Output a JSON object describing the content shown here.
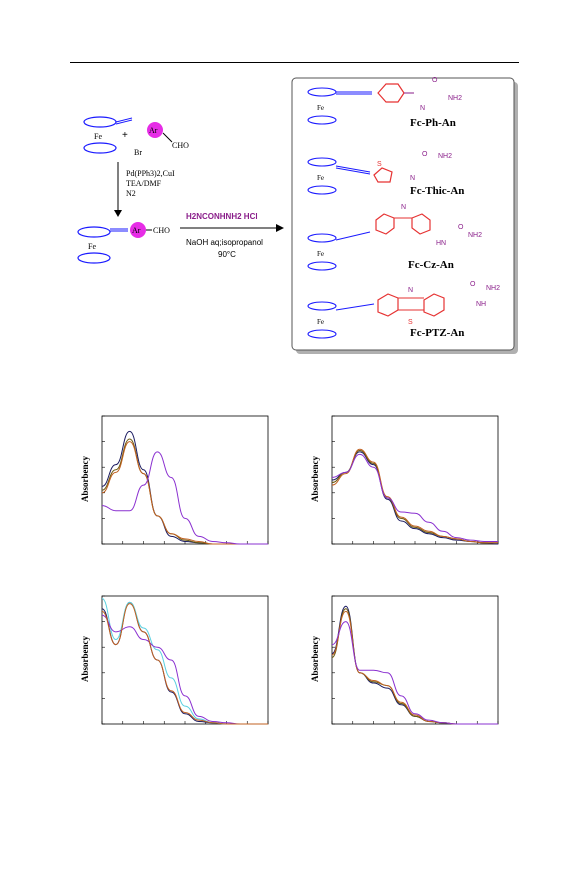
{
  "scheme": {
    "ar_label": "Ar",
    "br_label": "Br",
    "cho_label": "CHO",
    "plus": "+",
    "fe_label": "Fe",
    "conditions_1": [
      "Pd(PPh3)2,CuI",
      "TEA/DMF",
      "N2"
    ],
    "reagent": "H2NCONHNH2  HCl",
    "conditions_2": [
      "NaOH aq;isopropanol",
      "90°C"
    ],
    "products": [
      {
        "name": "Fc-Ph-An",
        "nh2": "NH2",
        "nh": "N",
        "o": "O"
      },
      {
        "name": "Fc-Thic-An",
        "nh2": "NH2",
        "nh": "N",
        "o": "O",
        "s": "S"
      },
      {
        "name": "Fc-Cz-An",
        "nh2": "NH2",
        "nh": "HN",
        "o": "O",
        "n": "N"
      },
      {
        "name": "Fc-PTZ-An",
        "nh2": "NH2",
        "nh": "NH",
        "o": "O",
        "n": "N",
        "s": "S"
      }
    ],
    "colors": {
      "accent": "#8a1e8a",
      "ring_blue": "#1a1aff",
      "ar_fill": "#e62de6",
      "red": "#e63232"
    }
  },
  "chart_data": [
    {
      "type": "line",
      "ylabel": "Absorbency",
      "x": [
        0,
        1,
        2,
        3,
        4,
        5,
        6,
        7,
        8,
        9,
        10,
        11,
        12
      ],
      "series": [
        {
          "color": "#1a1a60",
          "values": [
            0.45,
            0.62,
            0.88,
            0.58,
            0.22,
            0.06,
            0.02,
            0.01,
            0.0,
            0.0,
            0.0,
            0.0,
            0.0
          ]
        },
        {
          "color": "#6a5a10",
          "values": [
            0.42,
            0.58,
            0.82,
            0.55,
            0.22,
            0.08,
            0.03,
            0.01,
            0.0,
            0.0,
            0.0,
            0.0,
            0.0
          ]
        },
        {
          "color": "#c06020",
          "values": [
            0.4,
            0.56,
            0.8,
            0.55,
            0.22,
            0.08,
            0.04,
            0.02,
            0.0,
            0.0,
            0.0,
            0.0,
            0.0
          ]
        },
        {
          "color": "#8a30d0",
          "values": [
            0.3,
            0.26,
            0.26,
            0.46,
            0.72,
            0.52,
            0.2,
            0.06,
            0.02,
            0.01,
            0.0,
            0.0,
            0.0
          ]
        }
      ],
      "ylim": [
        0,
        1
      ]
    },
    {
      "type": "line",
      "ylabel": "Absorbency",
      "x": [
        0,
        1,
        2,
        3,
        4,
        5,
        6,
        7,
        8,
        9,
        10,
        11,
        12
      ],
      "series": [
        {
          "color": "#1a1a60",
          "values": [
            0.5,
            0.56,
            0.72,
            0.62,
            0.35,
            0.18,
            0.12,
            0.08,
            0.05,
            0.03,
            0.02,
            0.01,
            0.0
          ]
        },
        {
          "color": "#6a5a10",
          "values": [
            0.48,
            0.56,
            0.73,
            0.63,
            0.36,
            0.2,
            0.13,
            0.09,
            0.06,
            0.04,
            0.02,
            0.01,
            0.01
          ]
        },
        {
          "color": "#c06020",
          "values": [
            0.46,
            0.55,
            0.74,
            0.64,
            0.37,
            0.21,
            0.14,
            0.1,
            0.06,
            0.04,
            0.02,
            0.01,
            0.01
          ]
        },
        {
          "color": "#8a30d0",
          "values": [
            0.52,
            0.56,
            0.7,
            0.6,
            0.36,
            0.25,
            0.24,
            0.17,
            0.1,
            0.05,
            0.03,
            0.02,
            0.02
          ]
        }
      ],
      "ylim": [
        0,
        1
      ]
    },
    {
      "type": "line",
      "ylabel": "Absorbency",
      "x": [
        0,
        1,
        2,
        3,
        4,
        5,
        6,
        7,
        8,
        9,
        10,
        11,
        12
      ],
      "series": [
        {
          "color": "#1a1a60",
          "values": [
            0.9,
            0.62,
            0.95,
            0.72,
            0.5,
            0.25,
            0.08,
            0.02,
            0.01,
            0.0,
            0.0,
            0.0,
            0.0
          ]
        },
        {
          "color": "#5ad0e0",
          "values": [
            0.98,
            0.66,
            0.95,
            0.75,
            0.58,
            0.36,
            0.14,
            0.04,
            0.01,
            0.0,
            0.0,
            0.0,
            0.0
          ]
        },
        {
          "color": "#8a30d0",
          "values": [
            0.85,
            0.72,
            0.76,
            0.66,
            0.6,
            0.5,
            0.22,
            0.06,
            0.02,
            0.01,
            0.0,
            0.0,
            0.0
          ]
        },
        {
          "color": "#c06020",
          "values": [
            0.88,
            0.62,
            0.94,
            0.72,
            0.5,
            0.26,
            0.09,
            0.03,
            0.01,
            0.0,
            0.0,
            0.0,
            0.0
          ]
        }
      ],
      "ylim": [
        0,
        1
      ]
    },
    {
      "type": "line",
      "ylabel": "Absorbency",
      "x": [
        0,
        1,
        2,
        3,
        4,
        5,
        6,
        7,
        8,
        9,
        10,
        11,
        12
      ],
      "series": [
        {
          "color": "#1a1a60",
          "values": [
            0.55,
            0.92,
            0.4,
            0.32,
            0.28,
            0.15,
            0.06,
            0.02,
            0.01,
            0.0,
            0.0,
            0.0,
            0.0
          ]
        },
        {
          "color": "#6a5a10",
          "values": [
            0.52,
            0.9,
            0.4,
            0.33,
            0.3,
            0.16,
            0.06,
            0.02,
            0.01,
            0.0,
            0.0,
            0.0,
            0.0
          ]
        },
        {
          "color": "#c06020",
          "values": [
            0.54,
            0.88,
            0.4,
            0.34,
            0.3,
            0.17,
            0.07,
            0.02,
            0.01,
            0.0,
            0.0,
            0.0,
            0.0
          ]
        },
        {
          "color": "#8a30d0",
          "values": [
            0.62,
            0.8,
            0.42,
            0.42,
            0.4,
            0.22,
            0.08,
            0.03,
            0.01,
            0.0,
            0.0,
            0.0,
            0.0
          ]
        }
      ],
      "ylim": [
        0,
        1
      ]
    }
  ]
}
